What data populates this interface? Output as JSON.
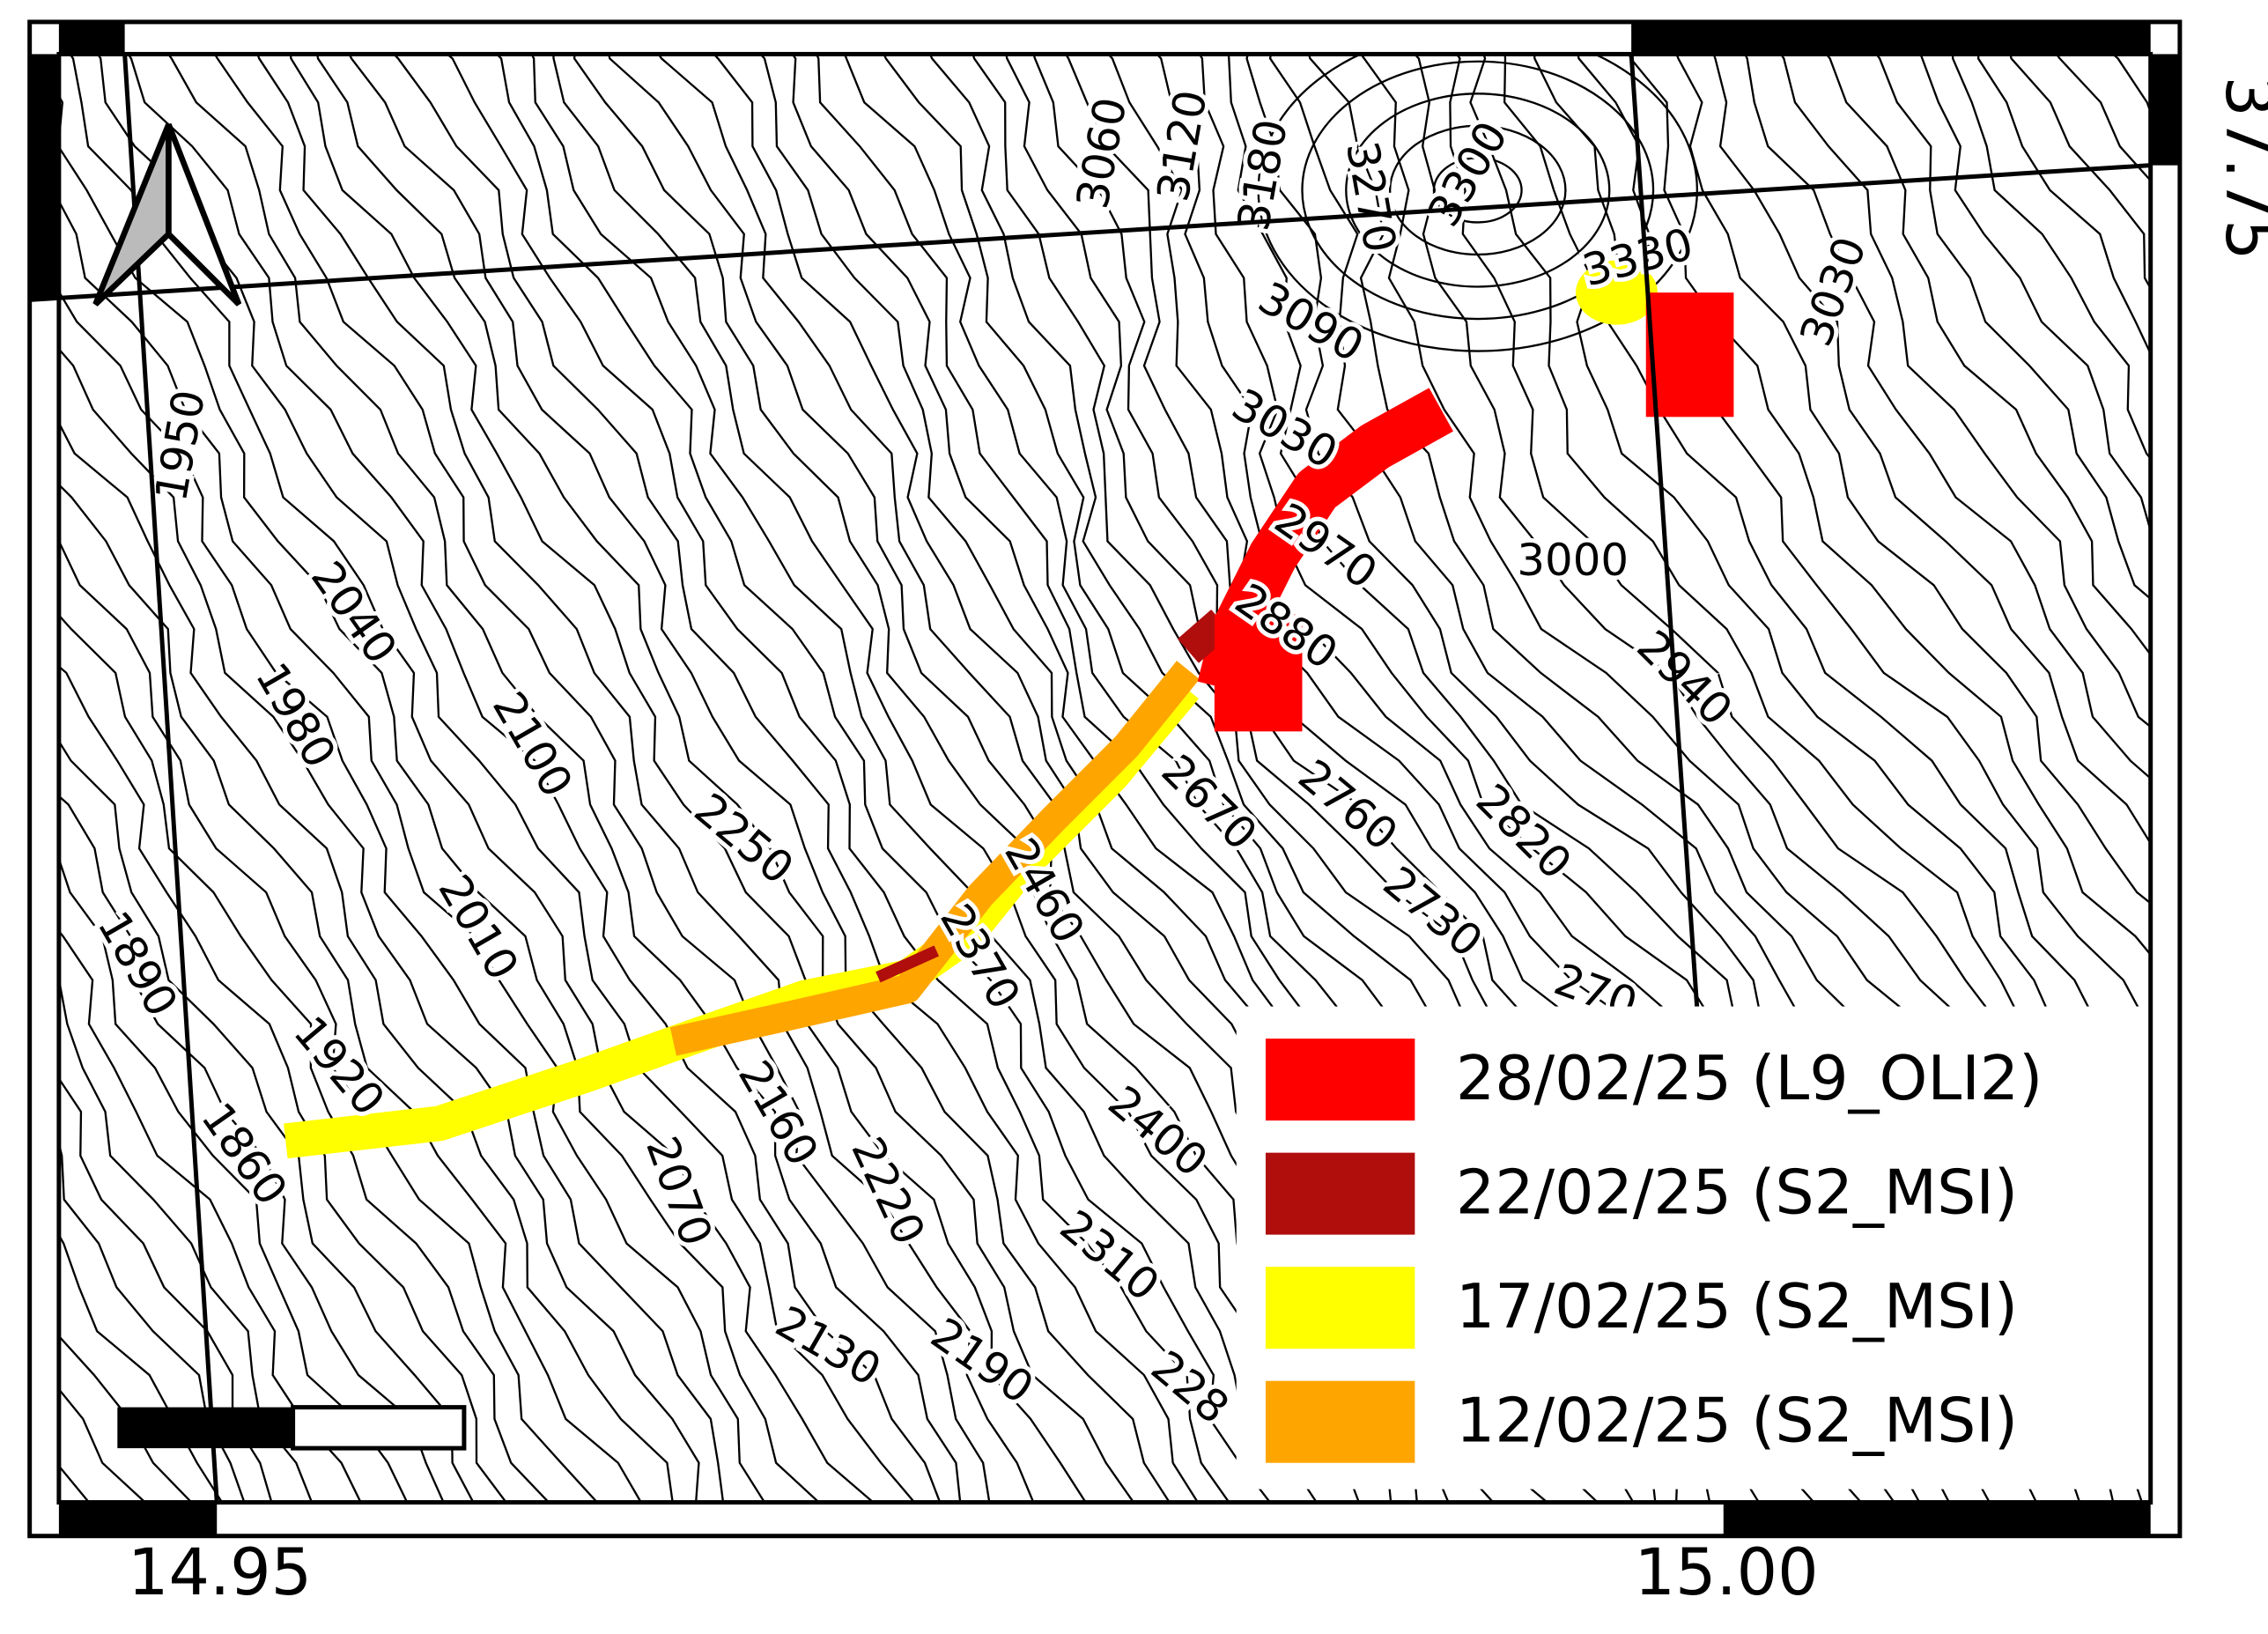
{
  "map": {
    "coordinate_labels": {
      "x": [
        "14.95",
        "15.00"
      ],
      "y": [
        "37.75"
      ]
    },
    "contour_labels": [
      "3060",
      "3120",
      "3180",
      "3270",
      "3300",
      "3330",
      "3030",
      "3090",
      "3030",
      "2970",
      "2880",
      "3000",
      "2940",
      "2820",
      "2760",
      "2670",
      "2730",
      "270",
      "2460",
      "2370",
      "2250",
      "2100",
      "2010",
      "2040",
      "1980",
      "1950",
      "1890",
      "1920",
      "1860",
      "2160",
      "2070",
      "2220",
      "2400",
      "2310",
      "2130",
      "2190",
      "228"
    ],
    "legend": [
      {
        "label": "28/02/25 (L9_OLI2)",
        "color": "#ff0000"
      },
      {
        "label": "22/02/25 (S2_MSI)",
        "color": "#b00d0d"
      },
      {
        "label": "17/02/25 (S2_MSI)",
        "color": "#ffff00"
      },
      {
        "label": "12/02/25 (S2_MSI)",
        "color": "#ffa500"
      }
    ]
  }
}
